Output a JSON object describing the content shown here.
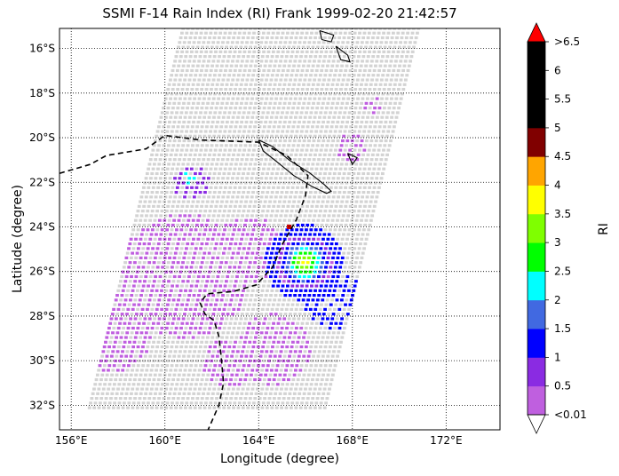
{
  "title": "SSMI F-14 Rain Index (RI) Frank 1999-02-20 21:42:57",
  "xlabel": "Longitude (degree)",
  "ylabel": "Latitude (degree)",
  "colorbar": {
    "label": "RI",
    "tick_labels": [
      "<0.01",
      "0.5",
      "1",
      "1.5",
      "2",
      "2.5",
      "3",
      "3.5",
      "4",
      "4.5",
      "5",
      "5.5",
      "6",
      ">6.5"
    ],
    "colors": [
      "#bf5fdf",
      "#8a2be2",
      "#0000ff",
      "#4169e1",
      "#00ffff",
      "#00ff00",
      "#7fff00",
      "#ffff00",
      "#ffa500",
      "#800000",
      "#000000",
      "#000000",
      "#000000"
    ],
    "extend_low_color": "#ffffff",
    "extend_high_color": "#ff0000"
  },
  "map": {
    "projection": "cylindrical",
    "lon_range": [
      155.5,
      174.3
    ],
    "lat_range": [
      -33.1,
      -15.1
    ],
    "x_ticks": [
      "156°E",
      "160°E",
      "164°E",
      "168°E",
      "172°E"
    ],
    "x_tick_values": [
      156,
      160,
      164,
      168,
      172
    ],
    "y_ticks": [
      "16°S",
      "18°S",
      "20°S",
      "22°S",
      "24°S",
      "26°S",
      "28°S",
      "30°S",
      "32°S"
    ],
    "y_tick_values": [
      -16,
      -18,
      -20,
      -22,
      -24,
      -26,
      -28,
      -30,
      -32
    ],
    "grid": "dotted",
    "no_rain_color": "#d3d3d3",
    "track_style": "dashed",
    "storm_center": {
      "lon": 165.3,
      "lat": -24.0
    }
  }
}
